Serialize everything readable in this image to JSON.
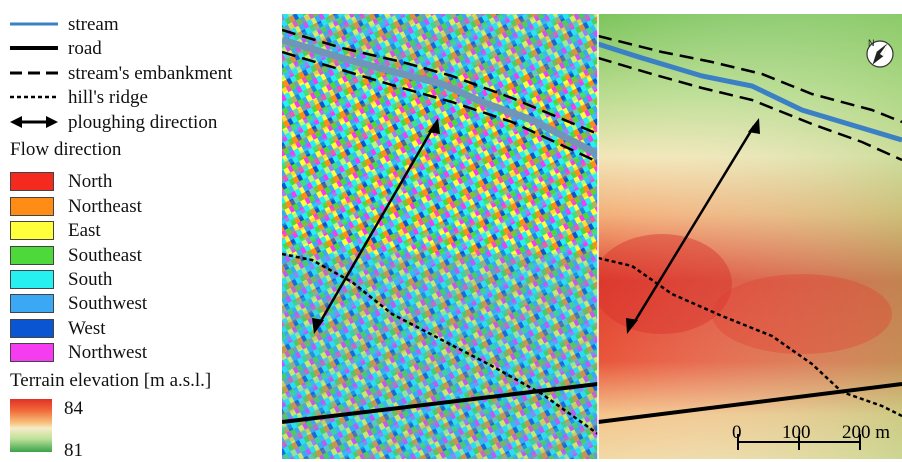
{
  "legend": {
    "line_items": [
      {
        "label": "stream",
        "color": "#3b7fc4"
      },
      {
        "label": "road",
        "color": "#000000"
      },
      {
        "label": "stream's embankment",
        "color": "#000000"
      },
      {
        "label": "hill's ridge",
        "color": "#000000"
      },
      {
        "label": "ploughing direction",
        "color": "#000000"
      }
    ],
    "flow_title": "Flow direction",
    "flow_classes": [
      {
        "label": "North",
        "color": "#f52a1e"
      },
      {
        "label": "Northeast",
        "color": "#ff8c14"
      },
      {
        "label": "East",
        "color": "#ffff3c"
      },
      {
        "label": "Southeast",
        "color": "#4ed93a"
      },
      {
        "label": "South",
        "color": "#27f0f0"
      },
      {
        "label": "Southwest",
        "color": "#3aa8f5"
      },
      {
        "label": "West",
        "color": "#0a55d2"
      },
      {
        "label": "Northwest",
        "color": "#f53cf0"
      }
    ],
    "elevation_title": "Terrain elevation [m a.s.l.]",
    "elevation_max": "84",
    "elevation_min": "81",
    "elevation_colors": {
      "high": "#e03026",
      "mid": "#f7ecc8",
      "low": "#3aa34a"
    }
  },
  "map": {
    "scalebar": {
      "ticks": [
        "0",
        "100",
        "200 m"
      ]
    },
    "north_arrow": {
      "label": "N"
    }
  }
}
